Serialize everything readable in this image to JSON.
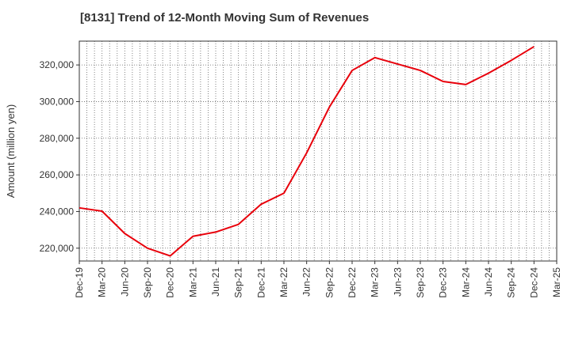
{
  "chart_data": {
    "type": "line",
    "title": "[8131]  Trend of 12-Month Moving Sum of Revenues",
    "xlabel": "",
    "ylabel": "Amount (million yen)",
    "x": [
      "Dec-19",
      "Mar-20",
      "Jun-20",
      "Sep-20",
      "Dec-20",
      "Mar-21",
      "Jun-21",
      "Sep-21",
      "Dec-21",
      "Mar-22",
      "Jun-22",
      "Sep-22",
      "Dec-22",
      "Mar-23",
      "Jun-23",
      "Sep-23",
      "Dec-23",
      "Mar-24",
      "Jun-24",
      "Sep-24",
      "Dec-24"
    ],
    "x_ticks": [
      "Dec-19",
      "Mar-20",
      "Jun-20",
      "Sep-20",
      "Dec-20",
      "Mar-21",
      "Jun-21",
      "Sep-21",
      "Dec-21",
      "Mar-22",
      "Jun-22",
      "Sep-22",
      "Dec-22",
      "Mar-23",
      "Jun-23",
      "Sep-23",
      "Dec-23",
      "Mar-24",
      "Jun-24",
      "Sep-24",
      "Dec-24",
      "Mar-25"
    ],
    "series": [
      {
        "values": [
          242000,
          240200,
          228000,
          220000,
          215800,
          226500,
          228800,
          233000,
          244000,
          250000,
          272000,
          297000,
          317000,
          324000,
          320500,
          317000,
          311000,
          309300,
          315500,
          322500,
          330000
        ],
        "color": "#e8000b"
      }
    ],
    "y_ticks": [
      220000,
      240000,
      260000,
      280000,
      300000,
      320000
    ],
    "y_tick_labels": [
      "220,000",
      "240,000",
      "260,000",
      "280,000",
      "300,000",
      "320,000"
    ],
    "ylim": [
      213000,
      333000
    ],
    "grid": true,
    "legend": "none"
  }
}
